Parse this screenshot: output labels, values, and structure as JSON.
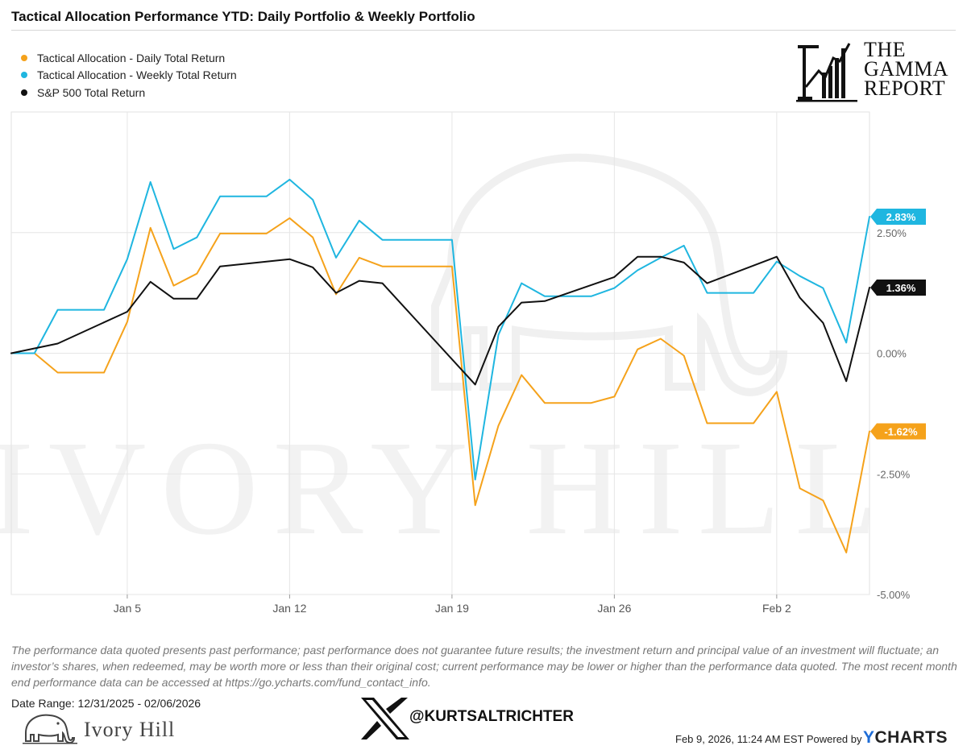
{
  "title": "Tactical Allocation Performance YTD: Daily Portfolio & Weekly Portfolio",
  "legend": [
    {
      "label": "Tactical Allocation - Daily Total Return",
      "color": "#f5a21b"
    },
    {
      "label": "Tactical Allocation - Weekly Total Return",
      "color": "#1fb6e0"
    },
    {
      "label": "S&P 500 Total Return",
      "color": "#111111"
    }
  ],
  "brand": {
    "gamma_lines": [
      "THE",
      "GAMMA",
      "REPORT"
    ],
    "watermark": "IVORY HILL",
    "ivory_hill": "Ivory Hill",
    "x_handle": "@KURTSALTRICHTER",
    "footer_stamp": "Feb 9, 2026, 11:24 AM EST Powered by",
    "ycharts_y": "Y",
    "ycharts_rest": "CHARTS"
  },
  "disclaimer": "The performance data quoted presents past performance; past performance does not guarantee future results; the investment return and principal value of an investment will fluctuate; an investor’s shares, when redeemed, may be worth more or less than their original cost; current performance may be lower or higher than the performance data quoted. The most recent month end performance data can be accessed at https://go.ycharts.com/fund_contact_info.",
  "date_range": "Date Range: 12/31/2025 - 02/06/2026",
  "chart_data": {
    "type": "line",
    "title": "",
    "xlabel": "",
    "ylabel": "",
    "ylim": [
      -5.0,
      5.0
    ],
    "y_ticks": [
      "2.50%",
      "0.00%",
      "-2.50%",
      "-5.00%"
    ],
    "y_tick_values": [
      2.5,
      0.0,
      -2.5,
      -5.0
    ],
    "x_ticks": [
      "Jan 5",
      "Jan 12",
      "Jan 19",
      "Jan 26",
      "Feb 2"
    ],
    "x_tick_values": [
      5,
      12,
      19,
      26,
      33
    ],
    "grid": true,
    "legend_position": "top-left",
    "end_labels": [
      "2.83%",
      "1.36%",
      "-1.62%"
    ],
    "x_unit": "January 2026 calendar day",
    "series": [
      {
        "name": "Tactical Allocation - Daily Total Return",
        "color": "#f5a21b",
        "x": [
          0,
          1,
          2,
          3,
          4,
          5,
          6,
          7,
          8,
          9,
          10,
          11,
          12,
          13,
          14,
          15,
          16,
          17,
          18,
          19,
          20,
          21,
          22,
          23,
          24,
          25,
          26,
          27,
          28,
          29,
          30,
          31,
          32,
          33,
          34,
          35,
          36,
          37
        ],
        "values": [
          0.0,
          0.0,
          -0.4,
          -0.4,
          -0.4,
          0.65,
          2.6,
          1.4,
          1.65,
          2.48,
          2.48,
          2.48,
          2.8,
          2.4,
          1.22,
          1.98,
          1.8,
          1.8,
          1.8,
          1.8,
          -3.15,
          -1.5,
          -0.45,
          -1.03,
          -1.03,
          -1.03,
          -0.9,
          0.08,
          0.3,
          -0.05,
          -1.45,
          -1.45,
          -1.45,
          -0.8,
          -2.8,
          -3.05,
          -4.13,
          -1.62
        ]
      },
      {
        "name": "Tactical Allocation - Weekly Total Return",
        "color": "#1fb6e0",
        "x": [
          0,
          1,
          2,
          3,
          4,
          5,
          6,
          7,
          8,
          9,
          10,
          11,
          12,
          13,
          14,
          15,
          16,
          17,
          18,
          19,
          20,
          21,
          22,
          23,
          24,
          25,
          26,
          27,
          28,
          29,
          30,
          31,
          32,
          33,
          34,
          35,
          36,
          37
        ],
        "values": [
          0.0,
          0.0,
          0.9,
          0.9,
          0.9,
          1.95,
          3.55,
          2.16,
          2.4,
          3.25,
          3.25,
          3.25,
          3.6,
          3.18,
          1.98,
          2.75,
          2.35,
          2.35,
          2.35,
          2.35,
          -2.62,
          0.38,
          1.45,
          1.18,
          1.18,
          1.18,
          1.35,
          1.72,
          1.98,
          2.23,
          1.25,
          1.25,
          1.25,
          1.9,
          1.6,
          1.35,
          0.22,
          2.83
        ]
      },
      {
        "name": "S&P 500 Total Return",
        "color": "#111111",
        "x": [
          0,
          2,
          5,
          6,
          7,
          8,
          9,
          11,
          12,
          13,
          14,
          15,
          16,
          20,
          21,
          22,
          23,
          26,
          27,
          28,
          29,
          30,
          33,
          34,
          35,
          36,
          37
        ],
        "values": [
          0.0,
          0.2,
          0.86,
          1.48,
          1.13,
          1.13,
          1.8,
          1.9,
          1.95,
          1.78,
          1.25,
          1.5,
          1.45,
          -0.65,
          0.55,
          1.05,
          1.08,
          1.58,
          2.0,
          2.0,
          1.88,
          1.45,
          2.0,
          1.15,
          0.63,
          -0.58,
          1.36
        ]
      }
    ]
  }
}
